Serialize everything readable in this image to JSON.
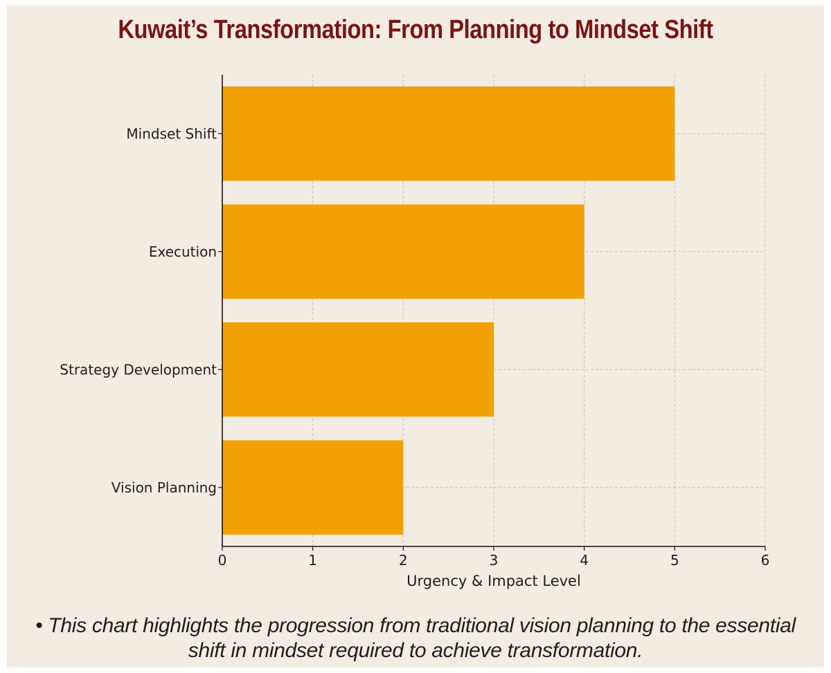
{
  "header": {
    "title": "Kuwait’s Transformation: From Planning to Mindset Shift"
  },
  "chart_data": {
    "type": "bar",
    "orientation": "horizontal",
    "title": "Kuwait’s Transformation: From Planning to Mindset Shift",
    "categories": [
      "Mindset Shift",
      "Execution",
      "Strategy Development",
      "Vision Planning"
    ],
    "values": [
      5,
      4,
      3,
      2
    ],
    "xlabel": "Urgency & Impact Level",
    "ylabel": "",
    "xlim": [
      0,
      6
    ],
    "xticks": [
      "0",
      "1",
      "2",
      "3",
      "4",
      "5",
      "6"
    ],
    "grid": true,
    "bar_color": "#f2a104"
  },
  "caption": {
    "text": "• This chart highlights the progression from traditional vision planning to the essential shift in mindset required to achieve transformation."
  }
}
